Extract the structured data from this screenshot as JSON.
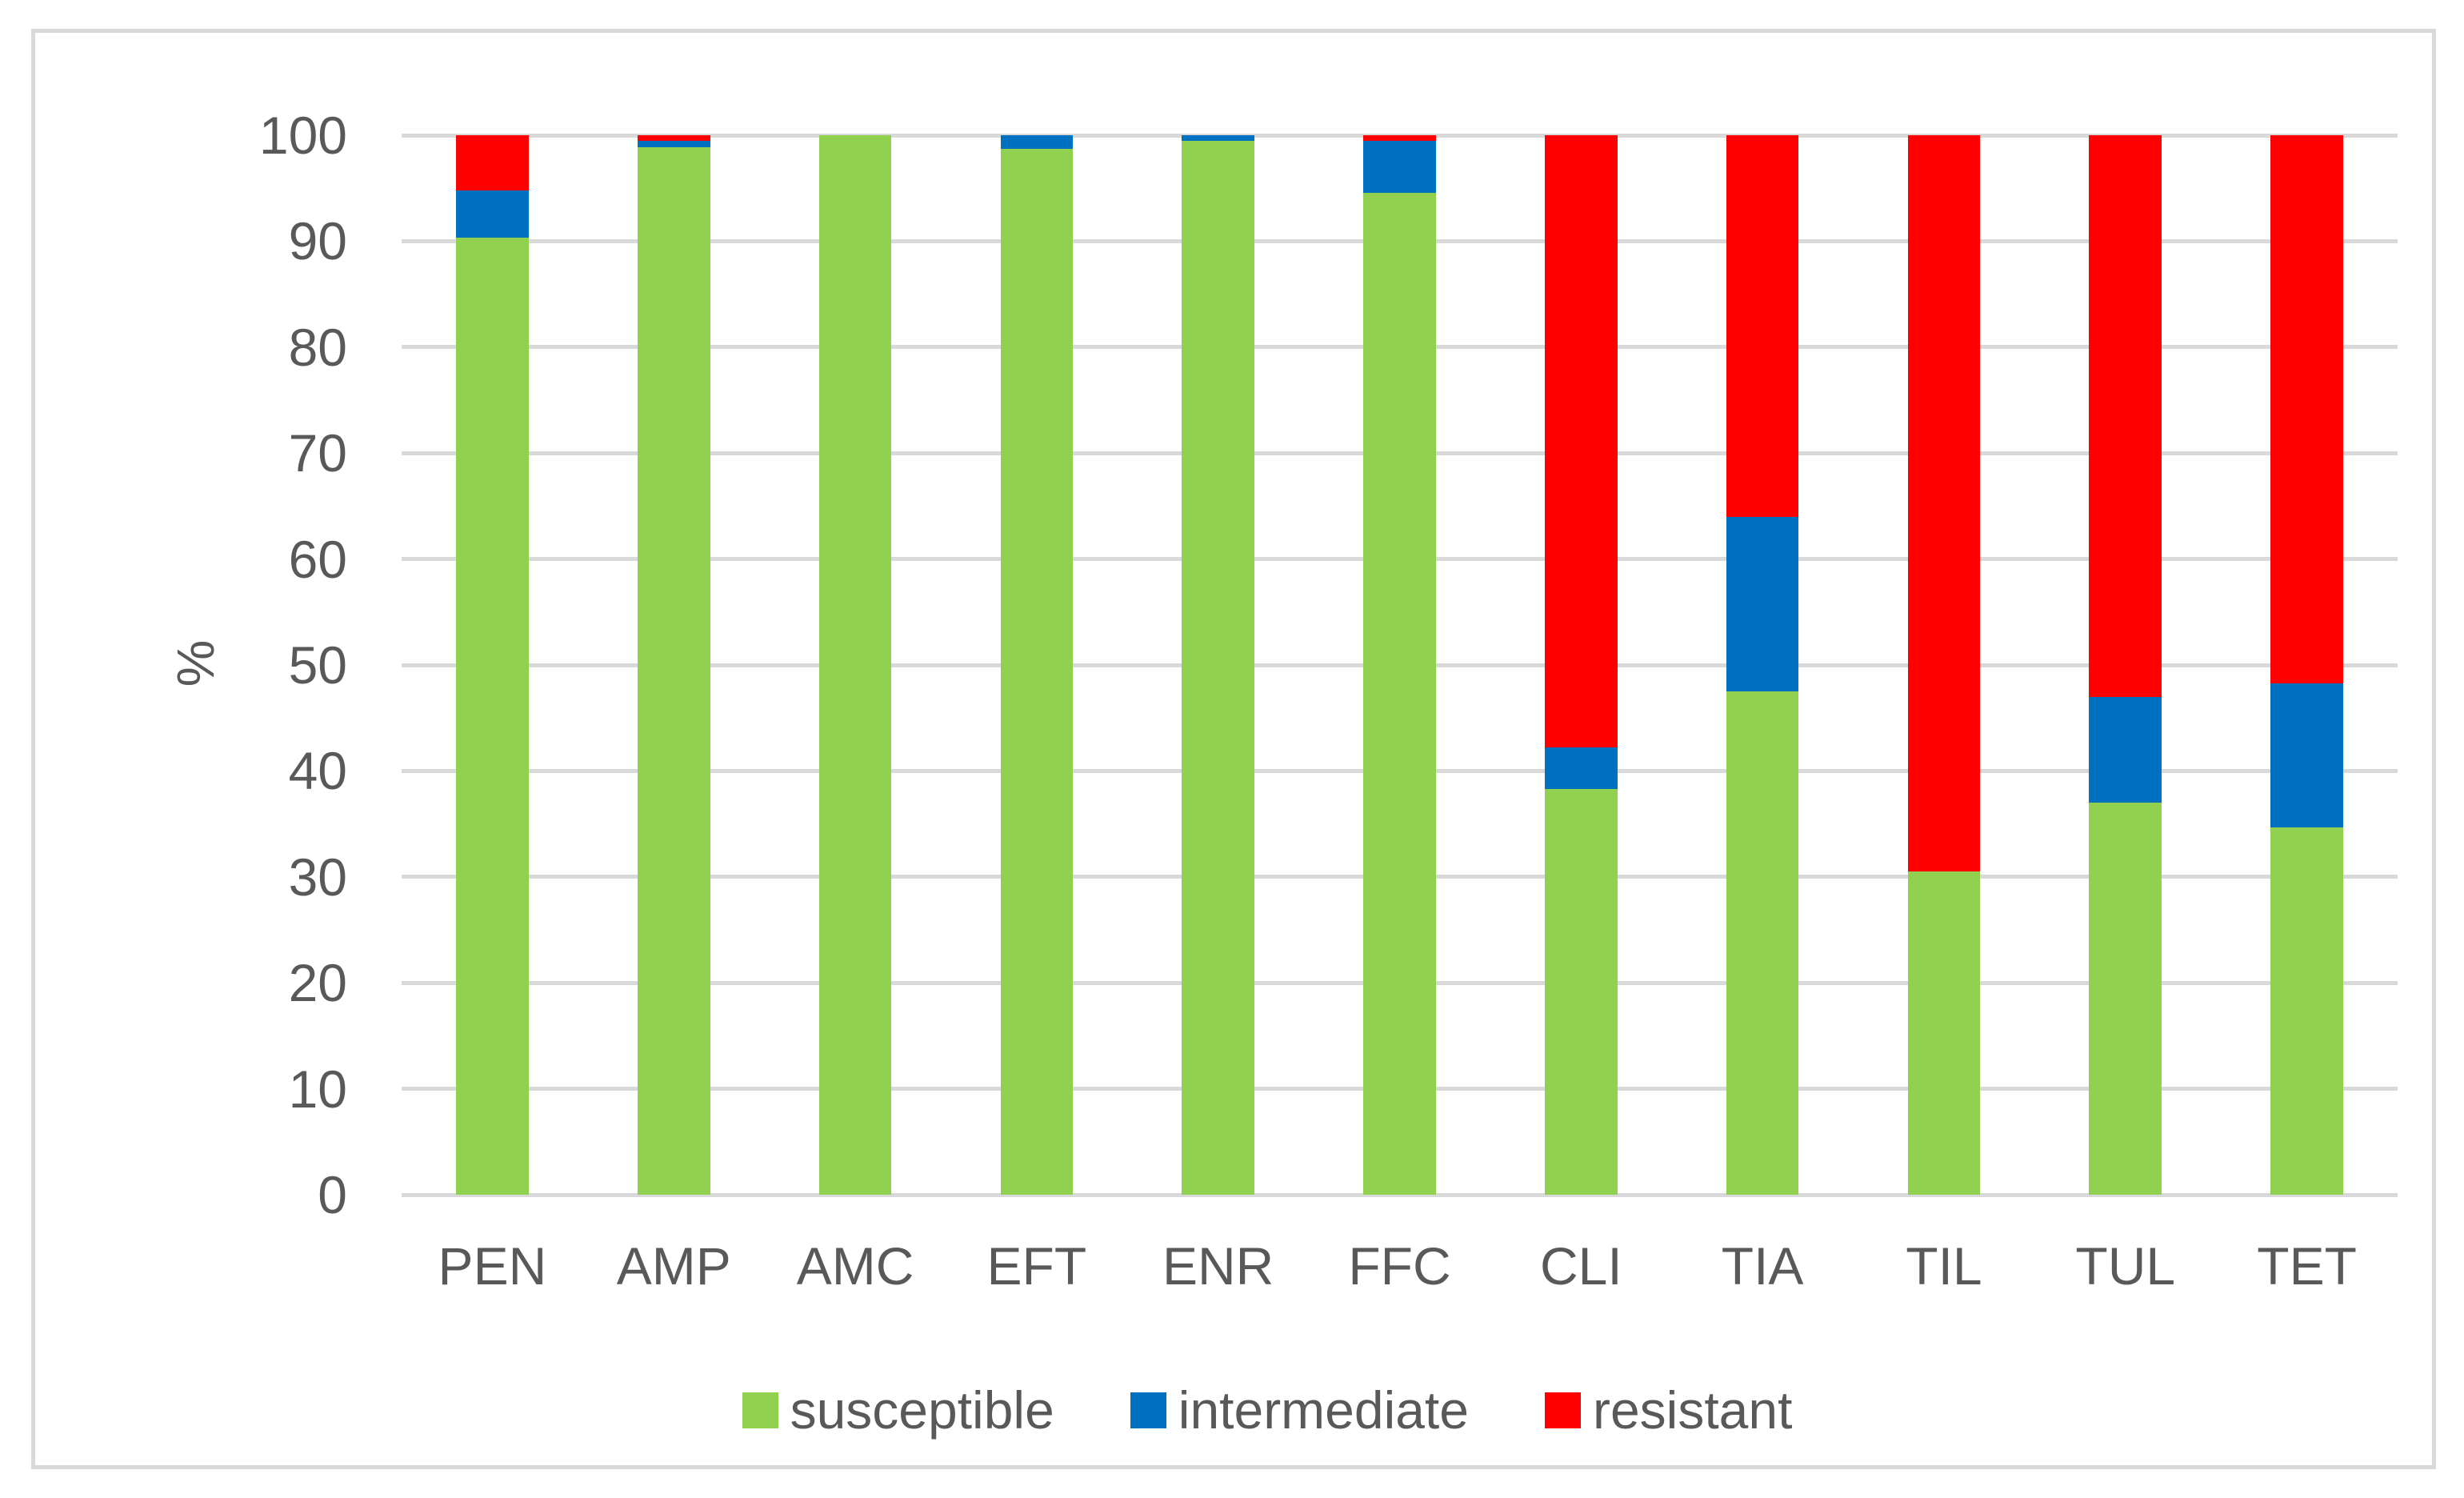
{
  "chart_data": {
    "type": "bar",
    "stacked": true,
    "title": "",
    "xlabel": "",
    "ylabel": "%",
    "ylim": [
      0,
      100
    ],
    "yticks": [
      0,
      10,
      20,
      30,
      40,
      50,
      60,
      70,
      80,
      90,
      100
    ],
    "grid": true,
    "legend_position": "bottom",
    "categories": [
      "PEN",
      "AMP",
      "AMC",
      "EFT",
      "ENR",
      "FFC",
      "CLI",
      "TIA",
      "TIL",
      "TUL",
      "TET"
    ],
    "series": [
      {
        "name": "susceptible",
        "color": "#92D050",
        "values": [
          90.3,
          98.9,
          100,
          98.7,
          99.5,
          94.6,
          38.3,
          47.5,
          30.5,
          37.0,
          34.7
        ]
      },
      {
        "name": "intermediate",
        "color": "#0070C0",
        "values": [
          4.5,
          0.6,
          0,
          1.3,
          0.5,
          4.9,
          3.9,
          16.5,
          0,
          10.0,
          13.6
        ]
      },
      {
        "name": "resistant",
        "color": "#FF0000",
        "values": [
          5.2,
          0.5,
          0,
          0,
          0,
          0.5,
          57.8,
          36.0,
          69.5,
          53.0,
          51.7
        ]
      }
    ]
  },
  "colors": {
    "text": "#595959",
    "gridline": "#D9D9D9",
    "frame_border": "#D9D9D9",
    "background": "#FFFFFF"
  }
}
